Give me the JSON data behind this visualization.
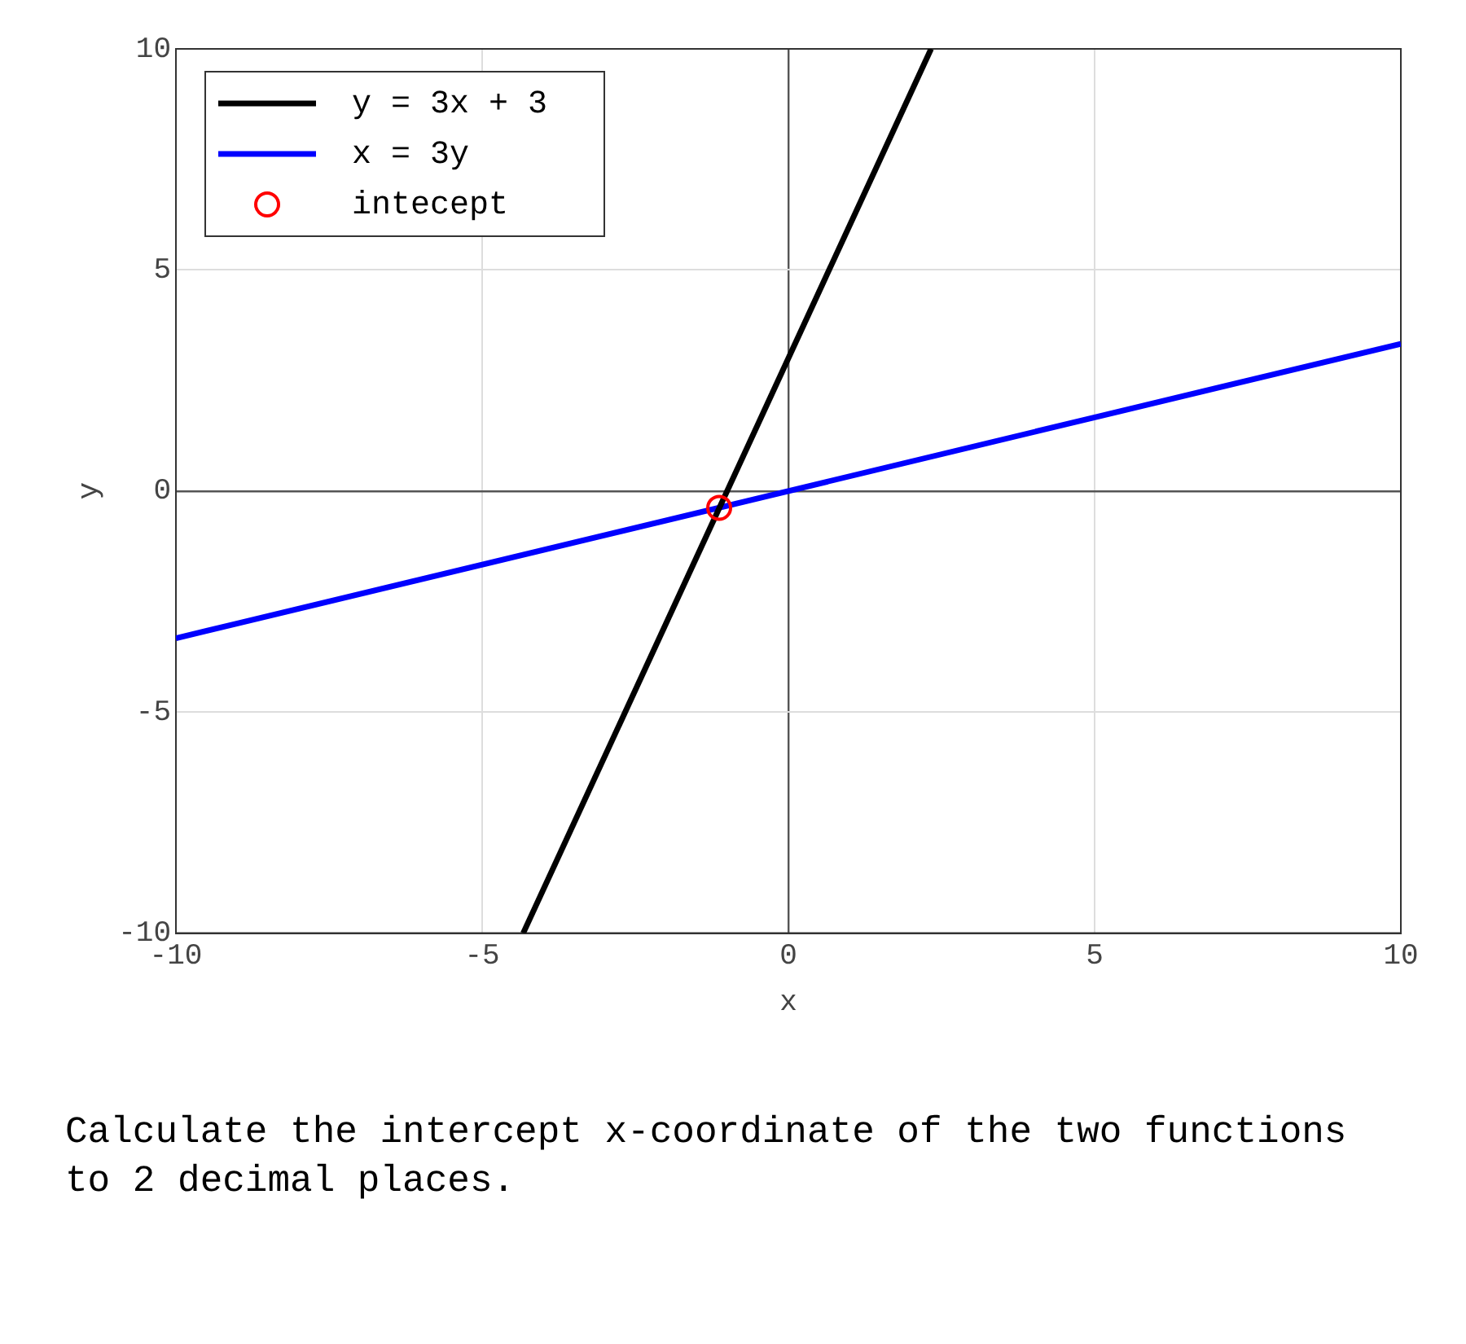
{
  "chart_data": {
    "type": "line",
    "xlabel": "x",
    "ylabel": "y",
    "xlim": [
      -10,
      10
    ],
    "ylim": [
      -10,
      10
    ],
    "xticks": [
      -10,
      -5,
      0,
      5,
      10
    ],
    "yticks": [
      -10,
      -5,
      0,
      5,
      10
    ],
    "grid": true,
    "legend": "top left",
    "line_style": "solid",
    "series": [
      {
        "name": "y = 3x + 3",
        "type": "line",
        "color": "#000000",
        "x": [
          -4.33,
          2.33
        ],
        "values": [
          -10,
          10
        ]
      },
      {
        "name": "x = 3y",
        "color": "#0000ff",
        "x": [
          -10,
          10
        ],
        "values": [
          -3.33,
          3.33
        ]
      },
      {
        "name": "intecept",
        "type": "scatter",
        "marker": "circle",
        "color": "#ff0000",
        "x": [
          -1.13
        ],
        "values": [
          -0.38
        ]
      }
    ],
    "annotations": [
      "Calculate the intercept x-coordinate of the two functions to 2 decimal places."
    ]
  }
}
